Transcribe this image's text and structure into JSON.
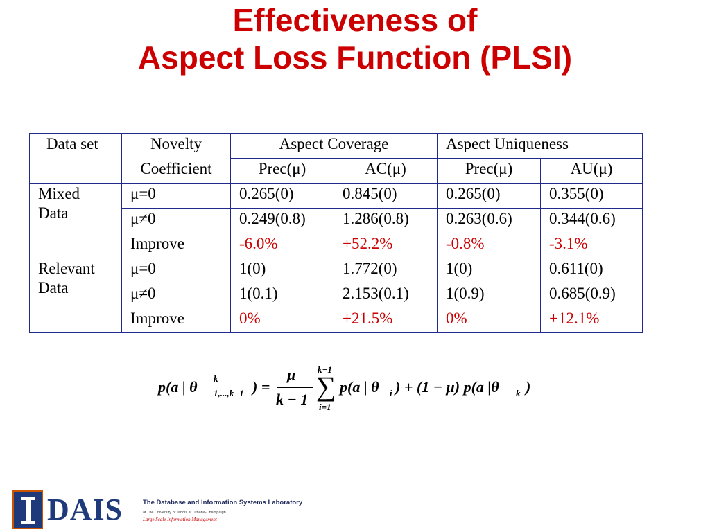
{
  "title": {
    "line1": "Effectiveness of",
    "line2": "Aspect Loss Function (PLSI)"
  },
  "table": {
    "headers": {
      "data_set": "Data set",
      "novelty_line1": "Novelty",
      "novelty_line2": "Coefficient",
      "aspect_coverage": "Aspect Coverage",
      "aspect_uniqueness": "Aspect Uniqueness",
      "prec_mu_1": "Prec(μ)",
      "ac_mu": "AC(μ)",
      "prec_mu_2": "Prec(μ)",
      "au_mu": "AU(μ)"
    },
    "groups": [
      {
        "name_line1": "Mixed",
        "name_line2": "Data",
        "rows": [
          {
            "coef": "μ=0",
            "cells": [
              "0.265(0)",
              "0.845(0)",
              "0.265(0)",
              "0.355(0)"
            ]
          },
          {
            "coef": "μ≠0",
            "cells": [
              "0.249(0.8)",
              "1.286(0.8)",
              "0.263(0.6)",
              "0.344(0.6)"
            ]
          },
          {
            "coef": "Improve",
            "cells": [
              "-6.0%",
              "+52.2%",
              "-0.8%",
              "-3.1%"
            ]
          }
        ]
      },
      {
        "name_line1": "Relevant",
        "name_line2": "Data",
        "rows": [
          {
            "coef": "μ=0",
            "cells": [
              "1(0)",
              "1.772(0)",
              "1(0)",
              "0.611(0)"
            ]
          },
          {
            "coef": "μ≠0",
            "cells": [
              "1(0.1)",
              "2.153(0.1)",
              "1(0.9)",
              "0.685(0.9)"
            ]
          },
          {
            "coef": "Improve",
            "cells": [
              "0%",
              "+21.5%",
              "0%",
              "+12.1%"
            ]
          }
        ]
      }
    ]
  },
  "formula": {
    "lhs": "p(a | θ",
    "lhs_sup": "k",
    "lhs_sub": "1,...,k−1",
    "lhs_close": ") =",
    "numerator": "μ",
    "denominator": "k − 1",
    "sum_top": "k−1",
    "sum_sign": "∑",
    "sum_bottom": "i=1",
    "term1": "p(a | θ",
    "term1_sub": "i",
    "term1_rest": ") + (1 − μ) p(a |θ",
    "term2_sub": "k",
    "term2_close": ")"
  },
  "logo": {
    "wordmark": "DAIS",
    "name": "The Database and Information Systems Laboratory",
    "affiliation": "at The University of Illinois at Urbana-Champaign",
    "tagline": "Large Scale Information Management"
  },
  "colors": {
    "title": "#cc0000",
    "table_border": "#1f2a8c",
    "improve_text": "#cc0000",
    "logo_blue": "#1f3a7a"
  }
}
